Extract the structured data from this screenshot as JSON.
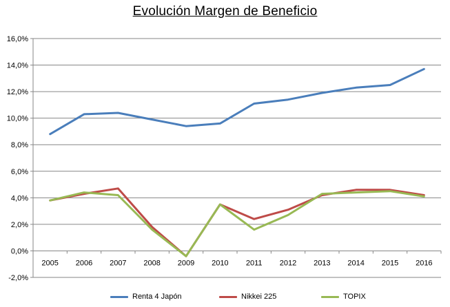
{
  "chart_data": {
    "type": "line",
    "title": "Evolución Margen de Beneficio",
    "xlabel": "",
    "ylabel": "",
    "categories": [
      "2005",
      "2006",
      "2007",
      "2008",
      "2009",
      "2010",
      "2011",
      "2012",
      "2013",
      "2014",
      "2015",
      "2016"
    ],
    "ylim": [
      -2.0,
      16.0
    ],
    "yticks": [
      "-2,0%",
      "0,0%",
      "2,0%",
      "4,0%",
      "6,0%",
      "8,0%",
      "10,0%",
      "12,0%",
      "14,0%",
      "16,0%"
    ],
    "ytick_values": [
      -2,
      0,
      2,
      4,
      6,
      8,
      10,
      12,
      14,
      16
    ],
    "grid": true,
    "legend_position": "bottom",
    "series": [
      {
        "name": "Renta 4 Japón",
        "color": "#4A7EBB",
        "values": [
          8.8,
          10.3,
          10.4,
          9.9,
          9.4,
          9.6,
          11.1,
          11.4,
          11.9,
          12.3,
          12.5,
          13.7
        ]
      },
      {
        "name": "Nikkei 225",
        "color": "#BE4B48",
        "values": [
          3.8,
          4.3,
          4.7,
          1.8,
          -0.4,
          3.5,
          2.4,
          3.1,
          4.2,
          4.6,
          4.6,
          4.2
        ]
      },
      {
        "name": "TOPIX",
        "color": "#98B954",
        "values": [
          3.8,
          4.4,
          4.2,
          1.6,
          -0.4,
          3.5,
          1.6,
          2.7,
          4.3,
          4.4,
          4.5,
          4.1
        ]
      }
    ]
  }
}
